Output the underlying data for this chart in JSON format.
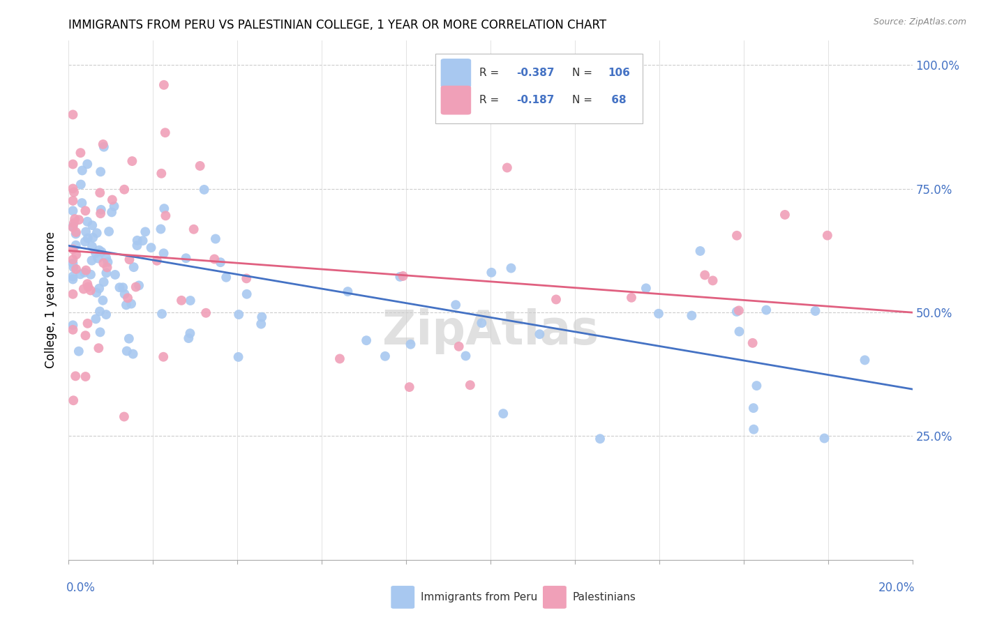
{
  "title": "IMMIGRANTS FROM PERU VS PALESTINIAN COLLEGE, 1 YEAR OR MORE CORRELATION CHART",
  "source": "Source: ZipAtlas.com",
  "ylabel": "College, 1 year or more",
  "legend_r1": "R = -0.387",
  "legend_n1": "N = 106",
  "legend_r2": "R = -0.187",
  "legend_n2": "N =  68",
  "legend_label1": "Immigrants from Peru",
  "legend_label2": "Palestinians",
  "color_blue": "#A8C8F0",
  "color_pink": "#F0A0B8",
  "line_blue": "#4472C4",
  "line_pink": "#E06080",
  "watermark": "ZipAtlas",
  "xmin": 0.0,
  "xmax": 0.2,
  "ymin": 0.0,
  "ymax": 1.05
}
